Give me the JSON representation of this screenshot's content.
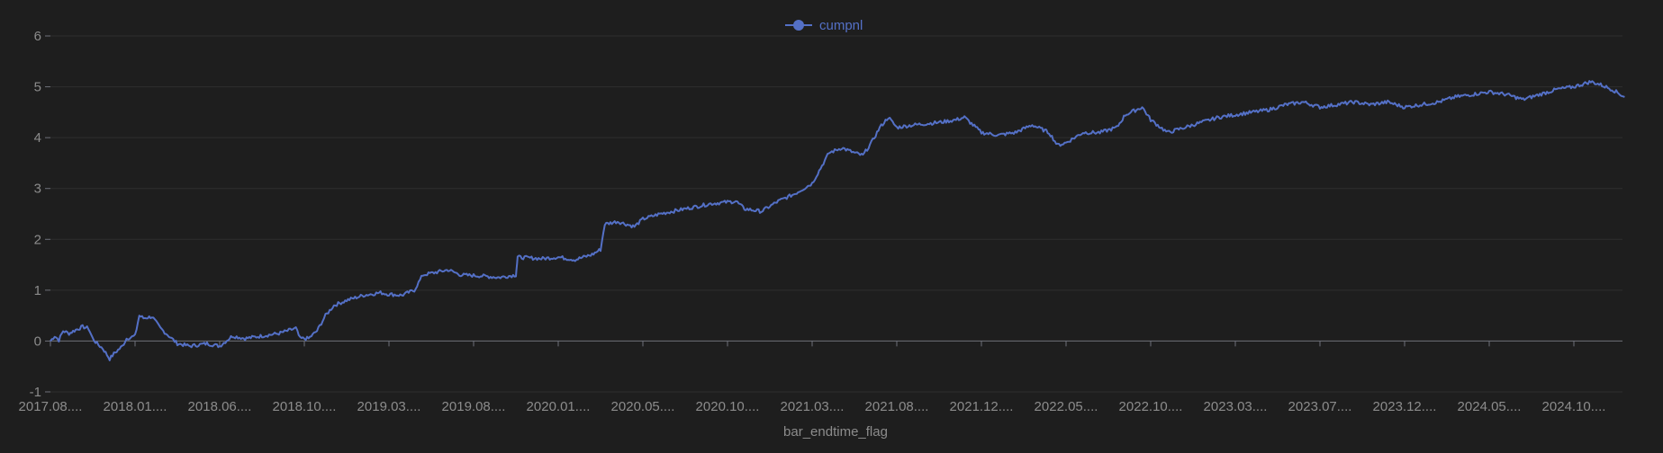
{
  "chart_data": {
    "type": "line",
    "legend": {
      "label": "cumpnl",
      "position": "top-center"
    },
    "xlabel": "bar_endtime_flag",
    "ylabel": "",
    "ylim": [
      -1,
      6
    ],
    "yticks": [
      -1,
      0,
      1,
      2,
      3,
      4,
      5,
      6
    ],
    "xtick_labels": [
      "2017.08....",
      "2018.01....",
      "2018.06....",
      "2018.10....",
      "2019.03....",
      "2019.08....",
      "2020.01....",
      "2020.05....",
      "2020.10....",
      "2021.03....",
      "2021.08....",
      "2021.12....",
      "2022.05....",
      "2022.10....",
      "2023.03....",
      "2023.07....",
      "2023.12....",
      "2024.05....",
      "2024.10...."
    ],
    "grid": true,
    "colors": {
      "line": "#5470c6",
      "background": "#1e1e1e"
    },
    "series": [
      {
        "name": "cumpnl",
        "x_range_index": [
          0,
          18.6
        ],
        "points": [
          [
            0.0,
            0.0
          ],
          [
            0.05,
            0.1
          ],
          [
            0.1,
            0.02
          ],
          [
            0.15,
            0.2
          ],
          [
            0.22,
            0.15
          ],
          [
            0.3,
            0.22
          ],
          [
            0.38,
            0.28
          ],
          [
            0.45,
            0.25
          ],
          [
            0.5,
            0.05
          ],
          [
            0.55,
            -0.05
          ],
          [
            0.62,
            -0.15
          ],
          [
            0.7,
            -0.35
          ],
          [
            0.75,
            -0.25
          ],
          [
            0.85,
            -0.1
          ],
          [
            0.9,
            0.05
          ],
          [
            1.0,
            0.1
          ],
          [
            1.05,
            0.5
          ],
          [
            1.1,
            0.45
          ],
          [
            1.2,
            0.48
          ],
          [
            1.3,
            0.25
          ],
          [
            1.4,
            0.1
          ],
          [
            1.5,
            -0.05
          ],
          [
            1.65,
            -0.1
          ],
          [
            1.85,
            -0.05
          ],
          [
            2.0,
            -0.1
          ],
          [
            2.15,
            0.1
          ],
          [
            2.3,
            0.05
          ],
          [
            2.5,
            0.1
          ],
          [
            2.7,
            0.15
          ],
          [
            2.9,
            0.25
          ],
          [
            2.95,
            0.05
          ],
          [
            3.05,
            0.05
          ],
          [
            3.15,
            0.2
          ],
          [
            3.25,
            0.5
          ],
          [
            3.35,
            0.7
          ],
          [
            3.5,
            0.8
          ],
          [
            3.7,
            0.9
          ],
          [
            3.9,
            0.95
          ],
          [
            4.0,
            0.92
          ],
          [
            4.15,
            0.9
          ],
          [
            4.3,
            1.0
          ],
          [
            4.4,
            1.3
          ],
          [
            4.55,
            1.35
          ],
          [
            4.7,
            1.4
          ],
          [
            4.85,
            1.3
          ],
          [
            5.1,
            1.28
          ],
          [
            5.3,
            1.25
          ],
          [
            5.5,
            1.3
          ],
          [
            5.52,
            1.65
          ],
          [
            5.8,
            1.62
          ],
          [
            6.0,
            1.65
          ],
          [
            6.2,
            1.6
          ],
          [
            6.4,
            1.7
          ],
          [
            6.5,
            1.8
          ],
          [
            6.55,
            2.3
          ],
          [
            6.7,
            2.35
          ],
          [
            6.9,
            2.25
          ],
          [
            7.0,
            2.4
          ],
          [
            7.2,
            2.5
          ],
          [
            7.5,
            2.6
          ],
          [
            7.8,
            2.7
          ],
          [
            8.1,
            2.75
          ],
          [
            8.2,
            2.6
          ],
          [
            8.4,
            2.55
          ],
          [
            8.6,
            2.75
          ],
          [
            8.8,
            2.9
          ],
          [
            8.9,
            3.0
          ],
          [
            9.0,
            3.1
          ],
          [
            9.1,
            3.4
          ],
          [
            9.2,
            3.7
          ],
          [
            9.35,
            3.8
          ],
          [
            9.5,
            3.7
          ],
          [
            9.6,
            3.65
          ],
          [
            9.7,
            3.9
          ],
          [
            9.8,
            4.2
          ],
          [
            9.9,
            4.4
          ],
          [
            10.0,
            4.2
          ],
          [
            10.2,
            4.25
          ],
          [
            10.5,
            4.3
          ],
          [
            10.7,
            4.35
          ],
          [
            10.8,
            4.4
          ],
          [
            11.0,
            4.1
          ],
          [
            11.2,
            4.05
          ],
          [
            11.4,
            4.1
          ],
          [
            11.6,
            4.25
          ],
          [
            11.8,
            4.1
          ],
          [
            11.9,
            3.85
          ],
          [
            12.0,
            3.9
          ],
          [
            12.2,
            4.1
          ],
          [
            12.4,
            4.1
          ],
          [
            12.6,
            4.2
          ],
          [
            12.7,
            4.45
          ],
          [
            12.9,
            4.6
          ],
          [
            13.0,
            4.35
          ],
          [
            13.2,
            4.1
          ],
          [
            13.4,
            4.2
          ],
          [
            13.6,
            4.3
          ],
          [
            13.8,
            4.4
          ],
          [
            14.0,
            4.45
          ],
          [
            14.2,
            4.5
          ],
          [
            14.4,
            4.55
          ],
          [
            14.6,
            4.65
          ],
          [
            14.8,
            4.7
          ],
          [
            15.0,
            4.6
          ],
          [
            15.2,
            4.65
          ],
          [
            15.4,
            4.7
          ],
          [
            15.6,
            4.65
          ],
          [
            15.8,
            4.7
          ],
          [
            16.0,
            4.6
          ],
          [
            16.2,
            4.65
          ],
          [
            16.4,
            4.7
          ],
          [
            16.6,
            4.8
          ],
          [
            16.8,
            4.85
          ],
          [
            17.0,
            4.9
          ],
          [
            17.2,
            4.85
          ],
          [
            17.4,
            4.75
          ],
          [
            17.6,
            4.85
          ],
          [
            17.8,
            4.95
          ],
          [
            18.0,
            5.0
          ],
          [
            18.2,
            5.1
          ],
          [
            18.3,
            5.05
          ],
          [
            18.45,
            4.95
          ],
          [
            18.6,
            4.8
          ]
        ]
      }
    ]
  }
}
